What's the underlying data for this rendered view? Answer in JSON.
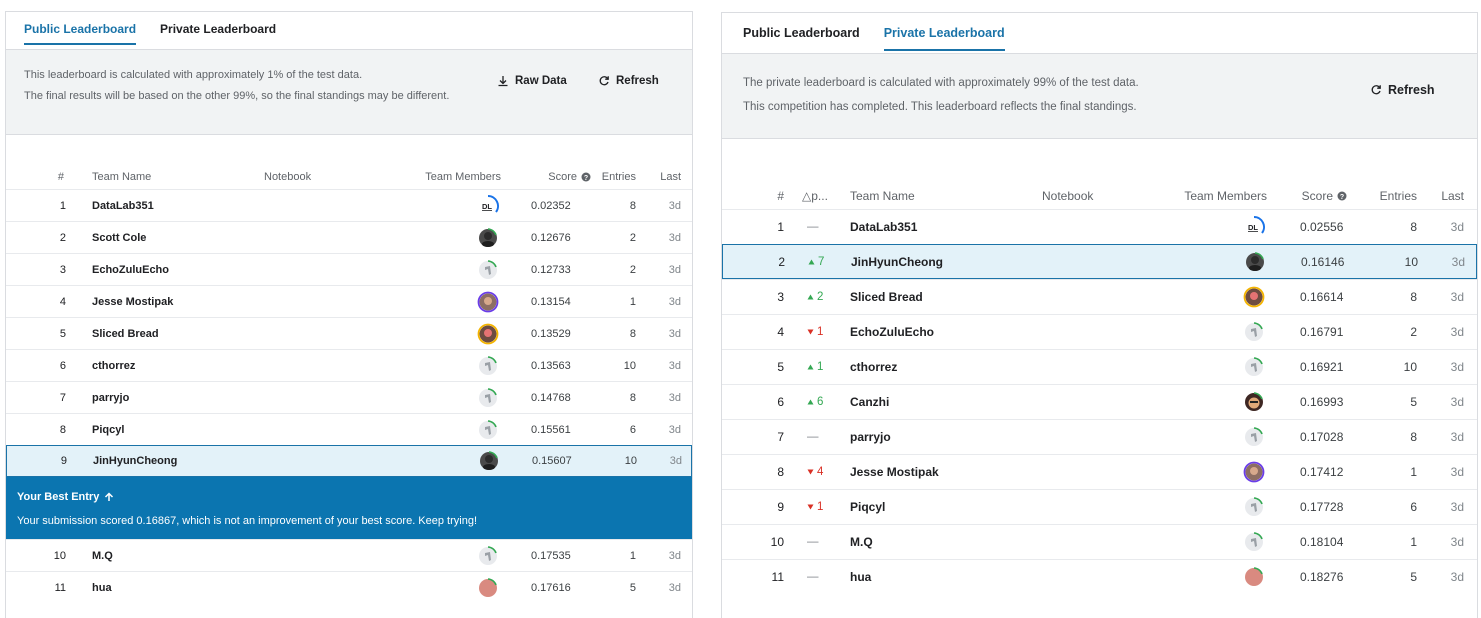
{
  "left": {
    "tabs": [
      "Public Leaderboard",
      "Private Leaderboard"
    ],
    "active_tab": 0,
    "info_line1": "This leaderboard is calculated with approximately 1% of the test data.",
    "info_line2": "The final results will be based on the other 99%, so the final standings may be different.",
    "raw_data_label": "Raw Data",
    "refresh_label": "Refresh",
    "headers": {
      "rank": "#",
      "team": "Team Name",
      "notebook": "Notebook",
      "members": "Team Members",
      "score": "Score",
      "entries": "Entries",
      "last": "Last"
    },
    "banner_title": "Your Best Entry",
    "banner_text": "Your submission scored 0.16867, which is not an improvement of your best score. Keep trying!",
    "rows": [
      {
        "rank": "1",
        "team": "DataLab351",
        "score": "0.02352",
        "entries": "8",
        "last": "3d",
        "avatar": "datalab"
      },
      {
        "rank": "2",
        "team": "Scott Cole",
        "score": "0.12676",
        "entries": "2",
        "last": "3d",
        "avatar": "photo-dark"
      },
      {
        "rank": "3",
        "team": "EchoZuluEcho",
        "score": "0.12733",
        "entries": "2",
        "last": "3d",
        "avatar": "default"
      },
      {
        "rank": "4",
        "team": "Jesse Mostipak",
        "score": "0.13154",
        "entries": "1",
        "last": "3d",
        "avatar": "photo-purple"
      },
      {
        "rank": "5",
        "team": "Sliced Bread",
        "score": "0.13529",
        "entries": "8",
        "last": "3d",
        "avatar": "photo-gold"
      },
      {
        "rank": "6",
        "team": "cthorrez",
        "score": "0.13563",
        "entries": "10",
        "last": "3d",
        "avatar": "default"
      },
      {
        "rank": "7",
        "team": "parryjo",
        "score": "0.14768",
        "entries": "8",
        "last": "3d",
        "avatar": "default"
      },
      {
        "rank": "8",
        "team": "Piqcyl",
        "score": "0.15561",
        "entries": "6",
        "last": "3d",
        "avatar": "default"
      },
      {
        "rank": "9",
        "team": "JinHyunCheong",
        "score": "0.15607",
        "entries": "10",
        "last": "3d",
        "avatar": "photo-dark",
        "highlight": true
      },
      {
        "rank": "10",
        "team": "M.Q",
        "score": "0.17535",
        "entries": "1",
        "last": "3d",
        "avatar": "default"
      },
      {
        "rank": "11",
        "team": "hua",
        "score": "0.17616",
        "entries": "5",
        "last": "3d",
        "avatar": "photo-pink"
      }
    ]
  },
  "right": {
    "tabs": [
      "Public Leaderboard",
      "Private Leaderboard"
    ],
    "active_tab": 1,
    "info_line1": "The private leaderboard is calculated with approximately 99% of the test data.",
    "info_line2": "This competition has completed. This leaderboard reflects the final standings.",
    "refresh_label": "Refresh",
    "headers": {
      "rank": "#",
      "delta": "△p...",
      "team": "Team Name",
      "notebook": "Notebook",
      "members": "Team Members",
      "score": "Score",
      "entries": "Entries",
      "last": "Last"
    },
    "rows": [
      {
        "rank": "1",
        "delta": "—",
        "dir": "same",
        "team": "DataLab351",
        "score": "0.02556",
        "entries": "8",
        "last": "3d",
        "avatar": "datalab"
      },
      {
        "rank": "2",
        "delta": "7",
        "dir": "up",
        "team": "JinHyunCheong",
        "score": "0.16146",
        "entries": "10",
        "last": "3d",
        "avatar": "photo-dark",
        "highlight": true
      },
      {
        "rank": "3",
        "delta": "2",
        "dir": "up",
        "team": "Sliced Bread",
        "score": "0.16614",
        "entries": "8",
        "last": "3d",
        "avatar": "photo-gold"
      },
      {
        "rank": "4",
        "delta": "1",
        "dir": "down",
        "team": "EchoZuluEcho",
        "score": "0.16791",
        "entries": "2",
        "last": "3d",
        "avatar": "default"
      },
      {
        "rank": "5",
        "delta": "1",
        "dir": "up",
        "team": "cthorrez",
        "score": "0.16921",
        "entries": "10",
        "last": "3d",
        "avatar": "default"
      },
      {
        "rank": "6",
        "delta": "6",
        "dir": "up",
        "team": "Canzhi",
        "score": "0.16993",
        "entries": "5",
        "last": "3d",
        "avatar": "photo-face"
      },
      {
        "rank": "7",
        "delta": "—",
        "dir": "same",
        "team": "parryjo",
        "score": "0.17028",
        "entries": "8",
        "last": "3d",
        "avatar": "default"
      },
      {
        "rank": "8",
        "delta": "4",
        "dir": "down",
        "team": "Jesse Mostipak",
        "score": "0.17412",
        "entries": "1",
        "last": "3d",
        "avatar": "photo-purple"
      },
      {
        "rank": "9",
        "delta": "1",
        "dir": "down",
        "team": "Piqcyl",
        "score": "0.17728",
        "entries": "6",
        "last": "3d",
        "avatar": "default"
      },
      {
        "rank": "10",
        "delta": "—",
        "dir": "same",
        "team": "M.Q",
        "score": "0.18104",
        "entries": "1",
        "last": "3d",
        "avatar": "default"
      },
      {
        "rank": "11",
        "delta": "—",
        "dir": "same",
        "team": "hua",
        "score": "0.18276",
        "entries": "5",
        "last": "3d",
        "avatar": "photo-pink"
      }
    ]
  },
  "colors": {
    "accent": "#1a73a8",
    "banner": "#0b75b0",
    "highlight_bg": "#e3f2f9",
    "up": "#34a853",
    "down": "#d93025"
  }
}
